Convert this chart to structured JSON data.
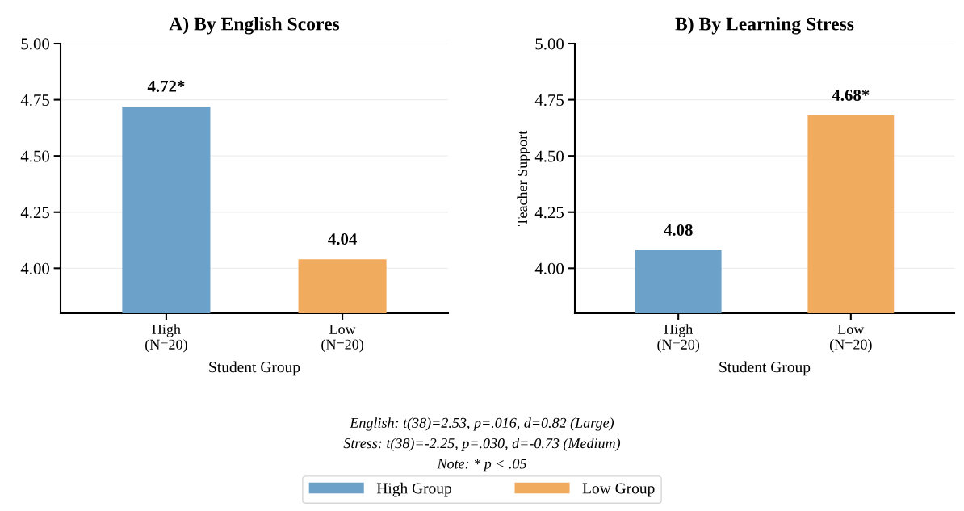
{
  "chart_data": [
    {
      "type": "bar",
      "title": "A) By English Scores",
      "xlabel": "Student Group",
      "categories": [
        "High\n(N=20)",
        "Low\n(N=20)"
      ],
      "series": [
        {
          "name": "High Group",
          "color": "#6ca1c9",
          "values": [
            4.72,
            null
          ],
          "value_labels": [
            "4.72*",
            null
          ]
        },
        {
          "name": "Low Group",
          "color": "#f0ab5e",
          "values": [
            null,
            4.04
          ],
          "value_labels": [
            null,
            "4.04"
          ]
        }
      ],
      "ylim": [
        3.8,
        5.0
      ],
      "yticks": [
        {
          "value": 4.0,
          "label": "4.00"
        },
        {
          "value": 4.25,
          "label": "4.25"
        },
        {
          "value": 4.5,
          "label": "4.50"
        },
        {
          "value": 4.75,
          "label": "4.75"
        },
        {
          "value": 5.0,
          "label": "5.00"
        }
      ],
      "grid": "y",
      "legend": "bottom",
      "annotations": [
        "English: t(38)=2.53, p=.016, d=0.82 (Large)",
        "Stress: t(38)=-2.25, p=.030, d=-0.73 (Medium)",
        "Note: * p < .05"
      ]
    },
    {
      "type": "bar",
      "title": "B) By Learning Stress",
      "xlabel": "Student Group",
      "ylabel": "Teacher Support",
      "categories": [
        "High\n(N=20)",
        "Low\n(N=20)"
      ],
      "series": [
        {
          "name": "High Group",
          "color": "#6ca1c9",
          "values": [
            4.08,
            null
          ],
          "value_labels": [
            "4.08",
            null
          ]
        },
        {
          "name": "Low Group",
          "color": "#f0ab5e",
          "values": [
            null,
            4.68
          ],
          "value_labels": [
            null,
            "4.68*"
          ]
        }
      ],
      "ylim": [
        3.8,
        5.0
      ],
      "yticks": [
        {
          "value": 4.0,
          "label": "4.00"
        },
        {
          "value": 4.25,
          "label": "4.25"
        },
        {
          "value": 4.5,
          "label": "4.50"
        },
        {
          "value": 4.75,
          "label": "4.75"
        },
        {
          "value": 5.0,
          "label": "5.00"
        }
      ],
      "grid": "y",
      "legend": "bottom"
    }
  ]
}
